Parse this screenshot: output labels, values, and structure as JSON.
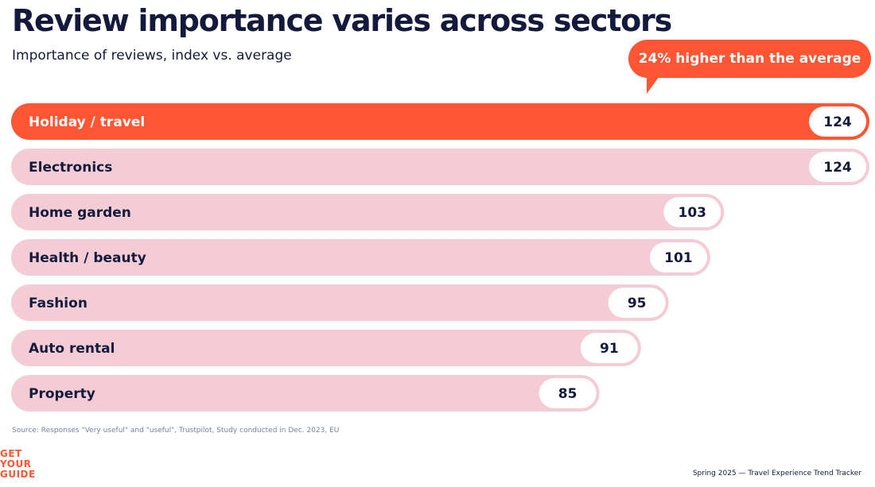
{
  "header": {
    "title": "Review importance varies across sectors",
    "subtitle": "Importance of reviews, index vs. average"
  },
  "callout": {
    "text": "24% higher than the average"
  },
  "chart_data": {
    "type": "bar",
    "orientation": "horizontal",
    "categories": [
      "Holiday / travel",
      "Electronics",
      "Home garden",
      "Health / beauty",
      "Fashion",
      "Auto rental",
      "Property"
    ],
    "values": [
      124,
      124,
      103,
      101,
      95,
      91,
      85
    ],
    "highlight_index": 0,
    "colors": {
      "highlight": "#ff5533",
      "default": "#f4ccd6",
      "text_dark": "#141a3b",
      "text_light": "#ffffff"
    }
  },
  "footer": {
    "source": "Source: Responses \"Very useful\" and \"useful\", Trustpilot, Study conducted in Dec. 2023, EU",
    "logo_lines": [
      "GET",
      "YOUR",
      "GUIDE"
    ],
    "caption": "Spring 2025 — Travel Experience Trend Tracker"
  }
}
